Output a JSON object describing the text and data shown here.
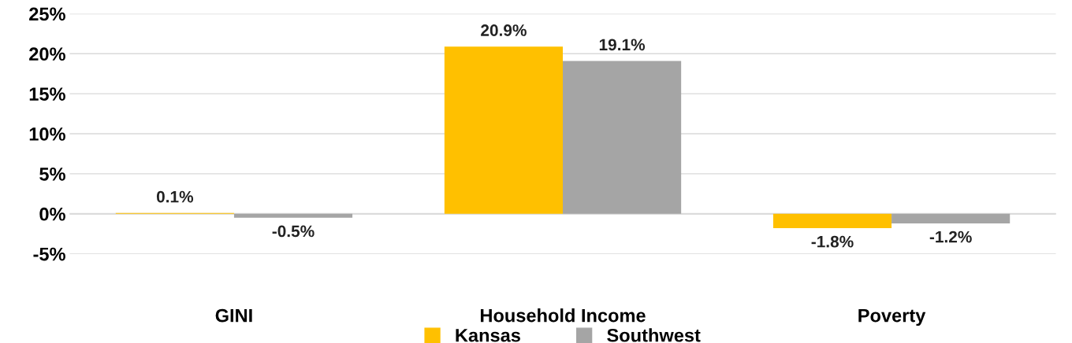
{
  "chart_data": {
    "type": "bar",
    "categories": [
      "GINI",
      "Household Income",
      "Poverty"
    ],
    "series": [
      {
        "name": "Kansas",
        "color": "#ffc000",
        "values": [
          0.1,
          20.9,
          -1.8
        ],
        "value_labels": [
          "0.1%",
          "20.9%",
          "-1.8%"
        ]
      },
      {
        "name": "Southwest",
        "color": "#a5a5a5",
        "values": [
          -0.5,
          19.1,
          -1.2
        ],
        "value_labels": [
          "-0.5%",
          "19.1%",
          "-1.2%"
        ]
      }
    ],
    "ylim": [
      -5,
      25
    ],
    "yticks": [
      {
        "value": -5,
        "label": "-5%"
      },
      {
        "value": 0,
        "label": "0%"
      },
      {
        "value": 5,
        "label": "5%"
      },
      {
        "value": 10,
        "label": "10%"
      },
      {
        "value": 15,
        "label": "15%"
      },
      {
        "value": 20,
        "label": "20%"
      },
      {
        "value": 25,
        "label": "25%"
      }
    ],
    "grid": "y",
    "legend": "bottom"
  }
}
